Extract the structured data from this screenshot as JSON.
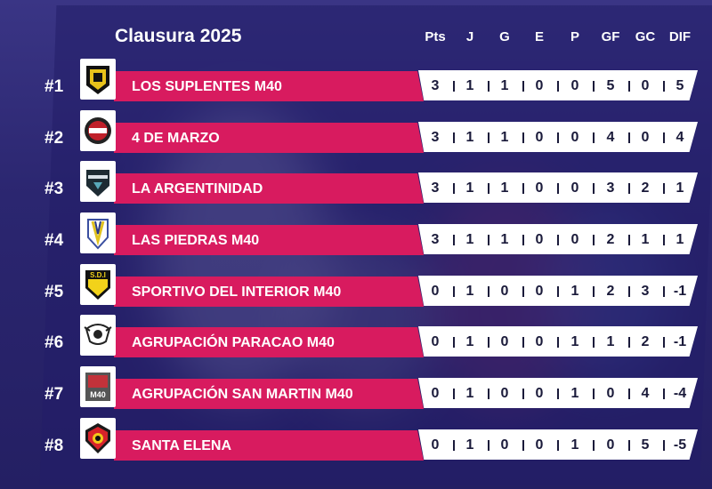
{
  "title": "Clausura 2025",
  "headers": [
    "Pts",
    "J",
    "G",
    "E",
    "P",
    "GF",
    "GC",
    "DIF"
  ],
  "colors": {
    "bar": "#d81b5f",
    "stats_bg": "#ffffff",
    "background": "#2b2670"
  },
  "rows": [
    {
      "rank": "#1",
      "team": "LOS SUPLENTES M40",
      "logo": "los-suplentes-crest",
      "stats": [
        "3",
        "1",
        "1",
        "0",
        "0",
        "5",
        "0",
        "5"
      ]
    },
    {
      "rank": "#2",
      "team": "4 DE MARZO",
      "logo": "4-de-marzo-crest",
      "stats": [
        "3",
        "1",
        "1",
        "0",
        "0",
        "4",
        "0",
        "4"
      ]
    },
    {
      "rank": "#3",
      "team": "LA ARGENTINIDAD",
      "logo": "la-argentinidad-crest",
      "stats": [
        "3",
        "1",
        "1",
        "0",
        "0",
        "3",
        "2",
        "1"
      ]
    },
    {
      "rank": "#4",
      "team": "LAS PIEDRAS M40",
      "logo": "las-piedras-crest",
      "stats": [
        "3",
        "1",
        "1",
        "0",
        "0",
        "2",
        "1",
        "1"
      ]
    },
    {
      "rank": "#5",
      "team": "SPORTIVO DEL INTERIOR M40",
      "logo": "sportivo-del-interior-crest",
      "logo_text": "S.D.I",
      "stats": [
        "0",
        "1",
        "0",
        "0",
        "1",
        "2",
        "3",
        "-1"
      ]
    },
    {
      "rank": "#6",
      "team": "AGRUPACIÓN PARACAO M40",
      "logo": "paracao-crest",
      "stats": [
        "0",
        "1",
        "0",
        "0",
        "1",
        "1",
        "2",
        "-1"
      ]
    },
    {
      "rank": "#7",
      "team": "AGRUPACIÓN SAN MARTIN M40",
      "logo": "san-martin-crest",
      "logo_text": "M40",
      "stats": [
        "0",
        "1",
        "0",
        "0",
        "1",
        "0",
        "4",
        "-4"
      ]
    },
    {
      "rank": "#8",
      "team": "SANTA ELENA",
      "logo": "santa-elena-crest",
      "stats": [
        "0",
        "1",
        "0",
        "0",
        "1",
        "0",
        "5",
        "-5"
      ]
    }
  ]
}
